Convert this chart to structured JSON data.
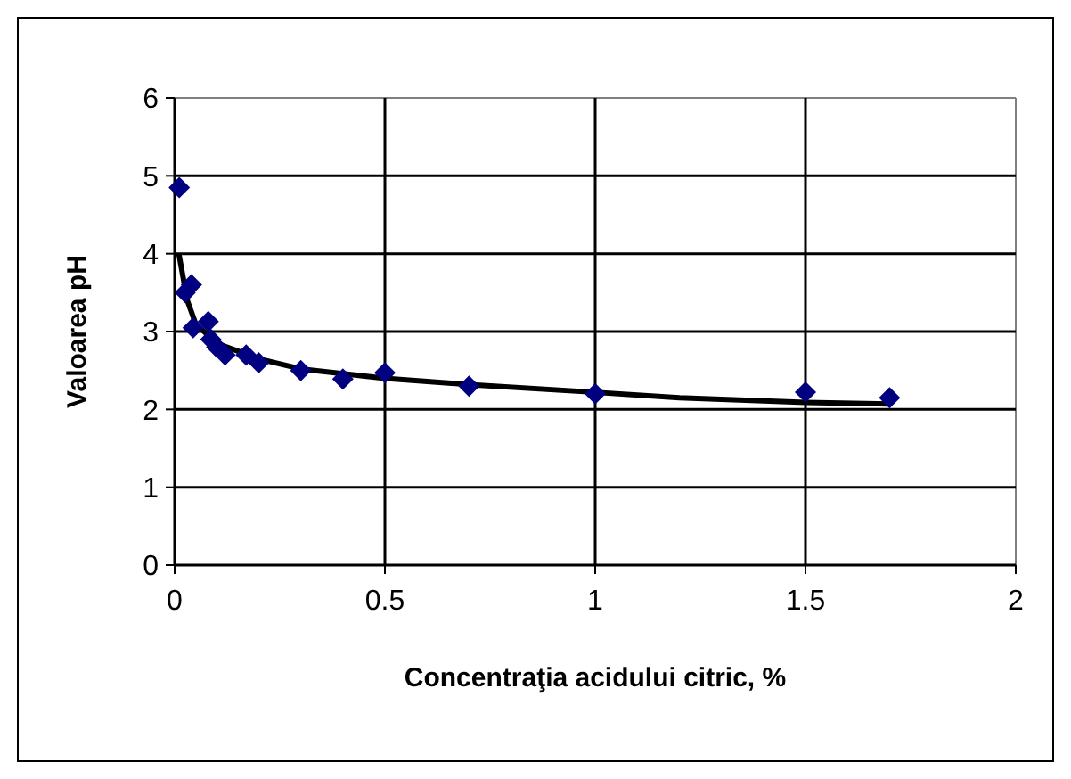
{
  "chart_data": {
    "type": "scatter",
    "xlabel": "Concentraţia acidului citric, %",
    "ylabel": "Valoarea pH",
    "xlim": [
      0,
      2
    ],
    "xticks": [
      0,
      0.5,
      1,
      1.5,
      2
    ],
    "ylim": [
      0,
      6
    ],
    "yticks": [
      0,
      1,
      2,
      3,
      4,
      5,
      6
    ],
    "grid": true,
    "marker": "diamond",
    "series": [
      {
        "color": "#000080",
        "x": [
          0.011,
          0.025,
          0.04,
          0.044,
          0.08,
          0.086,
          0.1,
          0.12,
          0.17,
          0.2,
          0.3,
          0.4,
          0.5,
          0.7,
          1.0,
          1.5,
          1.7
        ],
        "values": [
          4.85,
          3.5,
          3.6,
          3.05,
          3.13,
          2.9,
          2.8,
          2.7,
          2.7,
          2.6,
          2.5,
          2.39,
          2.47,
          2.3,
          2.2,
          2.22,
          2.15
        ]
      },
      {
        "type": "line",
        "color": "#000000",
        "marker": "none",
        "line_style": "solid",
        "x": [
          0.01,
          0.03,
          0.05,
          0.1,
          0.15,
          0.2,
          0.3,
          0.5,
          0.7,
          1.0,
          1.2,
          1.5,
          1.7
        ],
        "values": [
          4.0,
          3.4,
          3.1,
          2.85,
          2.75,
          2.65,
          2.52,
          2.4,
          2.32,
          2.22,
          2.15,
          2.09,
          2.07
        ]
      }
    ]
  }
}
